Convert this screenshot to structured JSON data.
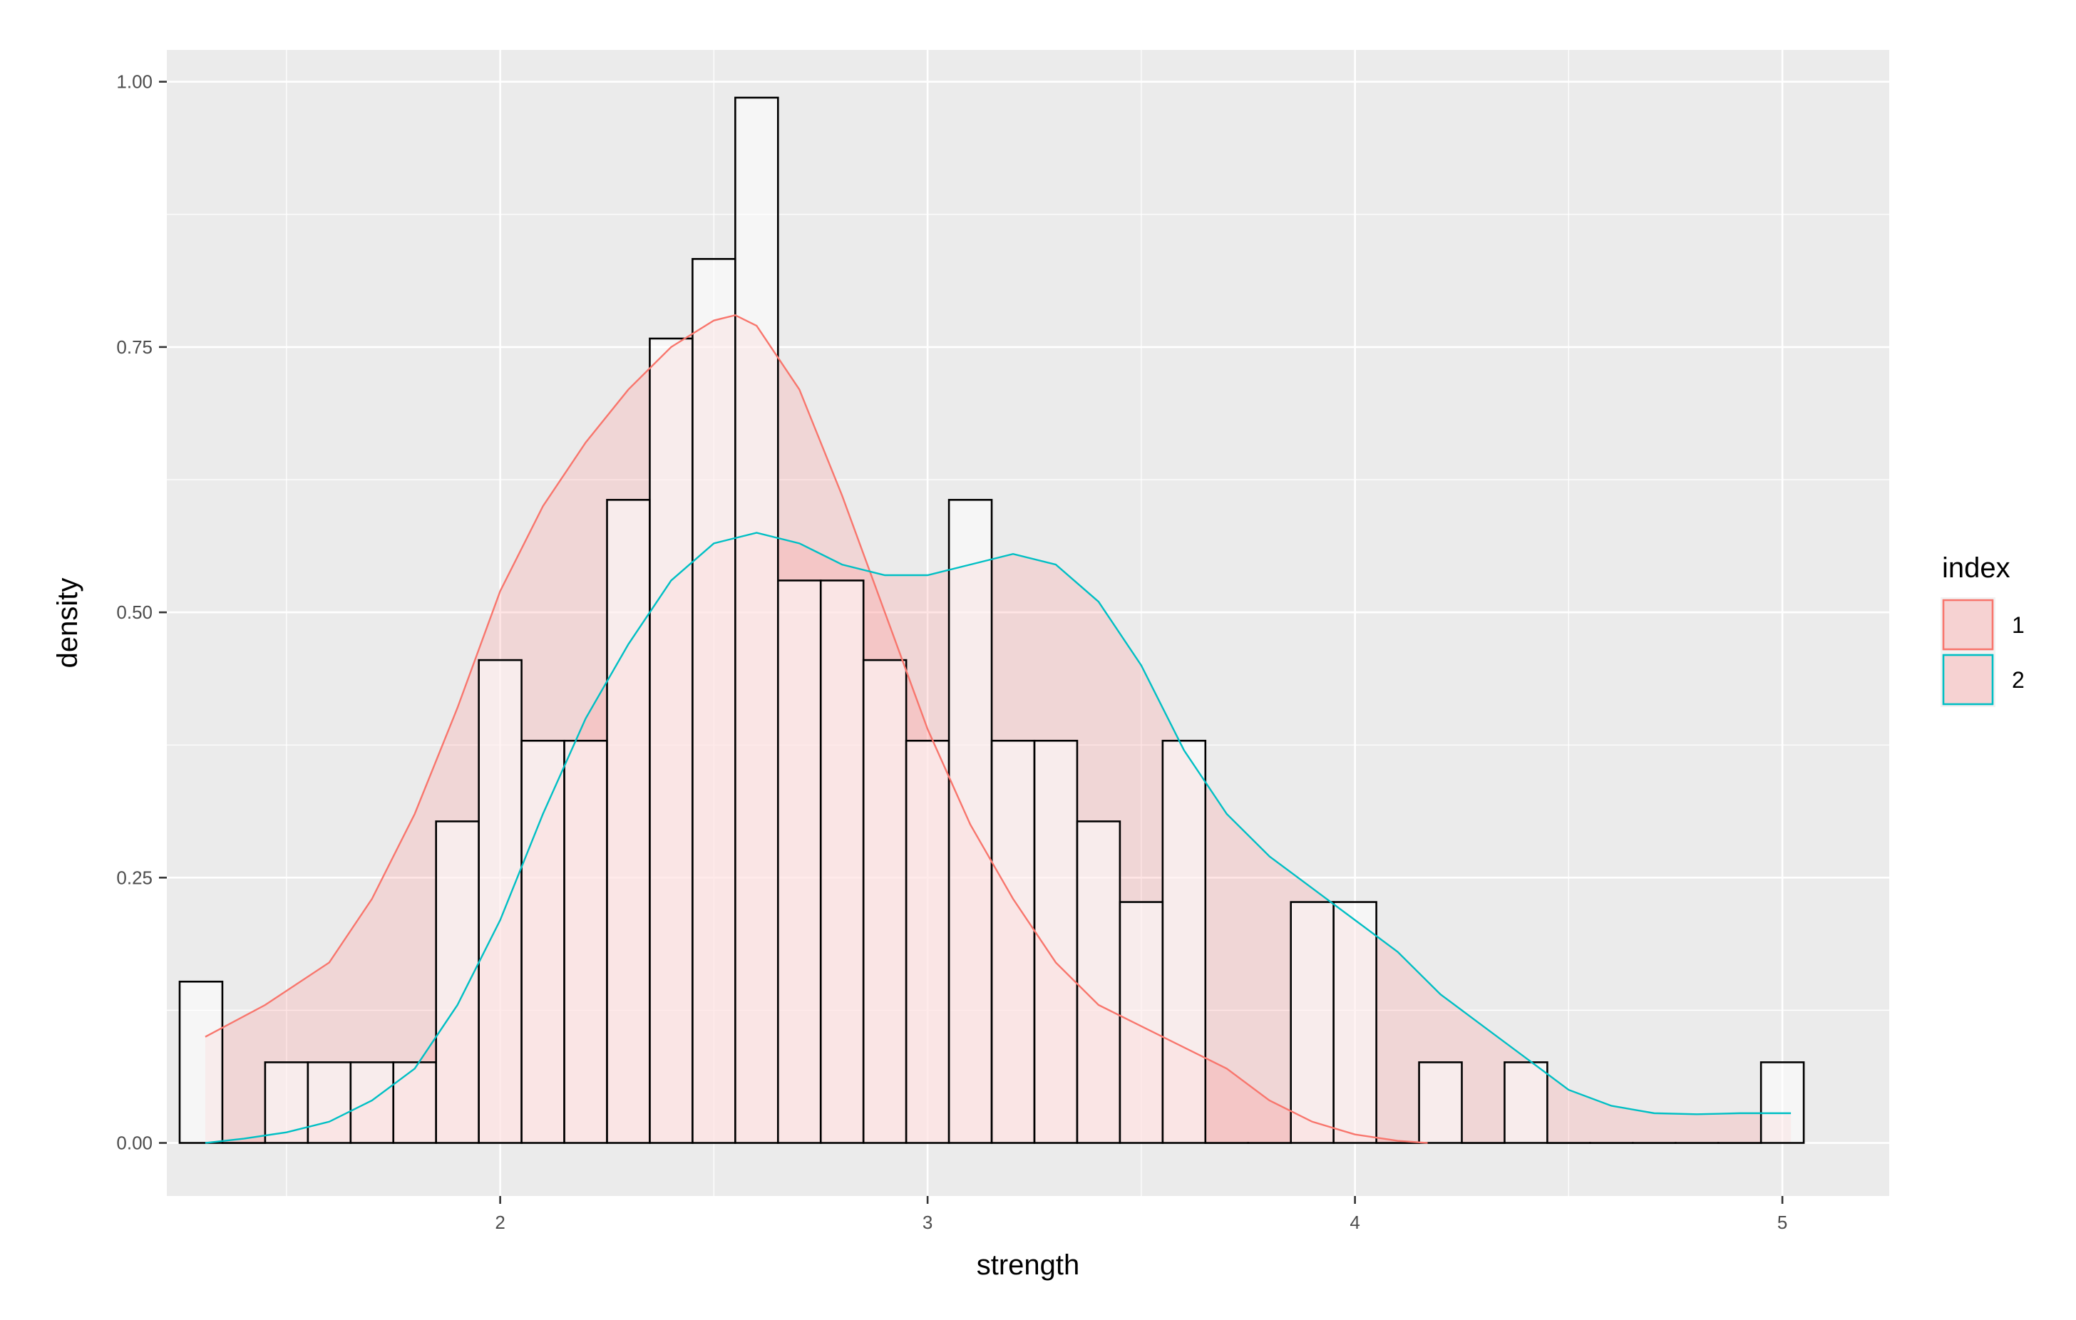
{
  "chart_data": {
    "type": "histogram+density",
    "xlabel": "strength",
    "ylabel": "density",
    "xlim": [
      1.22,
      5.25
    ],
    "ylim": [
      -0.05,
      1.03
    ],
    "x_ticks": [
      2,
      3,
      4,
      5
    ],
    "x_tick_labels": [
      "2",
      "3",
      "4",
      "5"
    ],
    "y_ticks": [
      0,
      0.25,
      0.5,
      0.75,
      1.0
    ],
    "y_tick_labels": [
      "0.00",
      "0.25",
      "0.50",
      "0.75",
      "1.00"
    ],
    "grid": true,
    "legend": {
      "title": "index",
      "position": "right",
      "entries": [
        "1",
        "2"
      ]
    },
    "histogram": {
      "bin_width": 0.1,
      "bins": [
        {
          "x": 1.3,
          "value": 0.152
        },
        {
          "x": 1.4,
          "value": 0.0
        },
        {
          "x": 1.5,
          "value": 0.076
        },
        {
          "x": 1.6,
          "value": 0.076
        },
        {
          "x": 1.7,
          "value": 0.076
        },
        {
          "x": 1.8,
          "value": 0.076
        },
        {
          "x": 1.9,
          "value": 0.303
        },
        {
          "x": 2.0,
          "value": 0.455
        },
        {
          "x": 2.1,
          "value": 0.379
        },
        {
          "x": 2.2,
          "value": 0.379
        },
        {
          "x": 2.3,
          "value": 0.606
        },
        {
          "x": 2.4,
          "value": 0.758
        },
        {
          "x": 2.5,
          "value": 0.833
        },
        {
          "x": 2.6,
          "value": 0.985
        },
        {
          "x": 2.7,
          "value": 0.53
        },
        {
          "x": 2.8,
          "value": 0.53
        },
        {
          "x": 2.9,
          "value": 0.455
        },
        {
          "x": 3.0,
          "value": 0.379
        },
        {
          "x": 3.1,
          "value": 0.606
        },
        {
          "x": 3.2,
          "value": 0.379
        },
        {
          "x": 3.3,
          "value": 0.379
        },
        {
          "x": 3.4,
          "value": 0.303
        },
        {
          "x": 3.5,
          "value": 0.227
        },
        {
          "x": 3.6,
          "value": 0.379
        },
        {
          "x": 3.7,
          "value": 0.0
        },
        {
          "x": 3.8,
          "value": 0.0
        },
        {
          "x": 3.9,
          "value": 0.227
        },
        {
          "x": 4.0,
          "value": 0.227
        },
        {
          "x": 4.1,
          "value": 0.0
        },
        {
          "x": 4.2,
          "value": 0.076
        },
        {
          "x": 4.3,
          "value": 0.0
        },
        {
          "x": 4.4,
          "value": 0.076
        },
        {
          "x": 4.5,
          "value": 0.0
        },
        {
          "x": 4.6,
          "value": 0.0
        },
        {
          "x": 4.7,
          "value": 0.0
        },
        {
          "x": 4.8,
          "value": 0.0
        },
        {
          "x": 4.9,
          "value": 0.0
        },
        {
          "x": 5.0,
          "value": 0.076
        }
      ]
    },
    "series": [
      {
        "name": "1",
        "color": "#F8766D",
        "points": [
          [
            1.31,
            0.1
          ],
          [
            1.45,
            0.13
          ],
          [
            1.6,
            0.17
          ],
          [
            1.7,
            0.23
          ],
          [
            1.8,
            0.31
          ],
          [
            1.9,
            0.41
          ],
          [
            2.0,
            0.52
          ],
          [
            2.1,
            0.6
          ],
          [
            2.2,
            0.66
          ],
          [
            2.3,
            0.71
          ],
          [
            2.4,
            0.75
          ],
          [
            2.5,
            0.775
          ],
          [
            2.55,
            0.78
          ],
          [
            2.6,
            0.77
          ],
          [
            2.7,
            0.71
          ],
          [
            2.8,
            0.61
          ],
          [
            2.9,
            0.5
          ],
          [
            3.0,
            0.39
          ],
          [
            3.1,
            0.3
          ],
          [
            3.2,
            0.23
          ],
          [
            3.3,
            0.17
          ],
          [
            3.4,
            0.13
          ],
          [
            3.5,
            0.11
          ],
          [
            3.6,
            0.09
          ],
          [
            3.7,
            0.07
          ],
          [
            3.8,
            0.04
          ],
          [
            3.9,
            0.02
          ],
          [
            4.0,
            0.008
          ],
          [
            4.1,
            0.002
          ],
          [
            4.17,
            0.0
          ]
        ]
      },
      {
        "name": "2",
        "color": "#00BFC4",
        "points": [
          [
            1.31,
            0.0
          ],
          [
            1.4,
            0.004
          ],
          [
            1.5,
            0.01
          ],
          [
            1.6,
            0.02
          ],
          [
            1.7,
            0.04
          ],
          [
            1.8,
            0.07
          ],
          [
            1.9,
            0.13
          ],
          [
            2.0,
            0.21
          ],
          [
            2.1,
            0.31
          ],
          [
            2.2,
            0.4
          ],
          [
            2.3,
            0.47
          ],
          [
            2.4,
            0.53
          ],
          [
            2.5,
            0.565
          ],
          [
            2.6,
            0.575
          ],
          [
            2.7,
            0.565
          ],
          [
            2.8,
            0.545
          ],
          [
            2.9,
            0.535
          ],
          [
            3.0,
            0.535
          ],
          [
            3.1,
            0.545
          ],
          [
            3.2,
            0.555
          ],
          [
            3.3,
            0.545
          ],
          [
            3.4,
            0.51
          ],
          [
            3.5,
            0.45
          ],
          [
            3.6,
            0.37
          ],
          [
            3.7,
            0.31
          ],
          [
            3.8,
            0.27
          ],
          [
            3.9,
            0.24
          ],
          [
            4.0,
            0.21
          ],
          [
            4.1,
            0.18
          ],
          [
            4.2,
            0.14
          ],
          [
            4.3,
            0.11
          ],
          [
            4.4,
            0.08
          ],
          [
            4.5,
            0.05
          ],
          [
            4.6,
            0.035
          ],
          [
            4.7,
            0.028
          ],
          [
            4.8,
            0.027
          ],
          [
            4.9,
            0.028
          ],
          [
            5.02,
            0.028
          ]
        ]
      }
    ]
  }
}
